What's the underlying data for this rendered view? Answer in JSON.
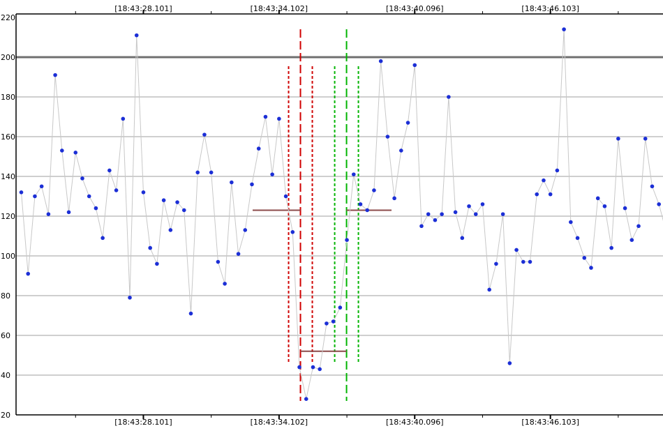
{
  "chart_data": {
    "type": "line",
    "title": "",
    "xlabel": "",
    "ylabel": "",
    "ylim": [
      20,
      220
    ],
    "yticks": [
      20,
      40,
      60,
      80,
      100,
      120,
      140,
      160,
      180,
      200,
      220
    ],
    "grid": true,
    "reference_line_y": 200,
    "x_tick_labels": [
      "[18:43:28.101]",
      "[18:43:34.102]",
      "[18:43:40.096]",
      "[18:43:46.103]"
    ],
    "x_tick_index": [
      18,
      38,
      58,
      78
    ],
    "series": [
      {
        "values": [
          132,
          91,
          130,
          135,
          121,
          191,
          153,
          122,
          152,
          139,
          130,
          124,
          109,
          143,
          133,
          169,
          79,
          211,
          132,
          104,
          96,
          128,
          113,
          127,
          123,
          71,
          142,
          161,
          142,
          97,
          86,
          137,
          101,
          113,
          136,
          154,
          170,
          141,
          169,
          130,
          112,
          44,
          28,
          44,
          43,
          66,
          67,
          74,
          108,
          141,
          126,
          123,
          133,
          198,
          160,
          129,
          153,
          167,
          196,
          115,
          121,
          118,
          121,
          180,
          122,
          109,
          125,
          121,
          126,
          83,
          96,
          121,
          46,
          103,
          97,
          97,
          131,
          138,
          131,
          143,
          214,
          117,
          109,
          99,
          94,
          129,
          125,
          104,
          159,
          124,
          108,
          115,
          159,
          135,
          126,
          113
        ]
      }
    ],
    "markers": {
      "red_event_index": 41,
      "green_event_index": 48,
      "level_before": 123,
      "level_during": 52,
      "level_after": 123
    },
    "colors": {
      "line": "#c8c8c8",
      "point": "#1c2fd6",
      "red": "#d00000",
      "green": "#00b400",
      "level": "#8b4a4a",
      "grid": "#cfcfcf",
      "reference": "#707070"
    }
  }
}
